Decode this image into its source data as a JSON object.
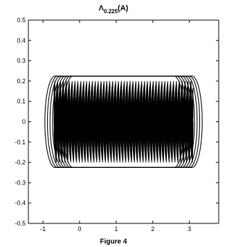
{
  "chart_data": {
    "type": "line",
    "title": {
      "symbol": "Λ",
      "subscript": "0.225",
      "suffix": "(A)"
    },
    "xlabel": "Figure 4",
    "ylabel": "",
    "xlim": [
      -1.4,
      3.8
    ],
    "ylim": [
      -0.5,
      0.5
    ],
    "x_ticks": [
      -1,
      0,
      1,
      2,
      3
    ],
    "y_ticks": [
      -0.5,
      -0.4,
      -0.3,
      -0.2,
      -0.1,
      0,
      0.1,
      0.2,
      0.3,
      0.4,
      0.5
    ],
    "grid": false,
    "legend": "none",
    "series": [
      {
        "description": "family of nested closed loops, each spanning x from center-halfwidth to center+halfwidth, y up to ±amplitude",
        "color": "#000000",
        "loop_x_extent": [
          -0.95,
          3.35
        ],
        "loop_y_extent": [
          -0.225,
          0.225
        ],
        "loop_centers_x": [
          1.2,
          1.2,
          1.2,
          1.2,
          1.2,
          1.2,
          1.2,
          1.2
        ],
        "loop_half_widths_x": [
          2.15,
          2.08,
          2.01,
          1.94,
          1.87,
          1.8,
          1.73,
          1.66
        ],
        "amplitude_y": 0.225,
        "inner_oscillation_x_extent": [
          -0.7,
          3.1
        ],
        "inner_oscillation_amplitudes": [
          0.2,
          0.19,
          0.18,
          0.165,
          0.15,
          0.125,
          0.1,
          0.07,
          0.04,
          0.015
        ],
        "inner_oscillation_cycles": 48
      }
    ]
  }
}
